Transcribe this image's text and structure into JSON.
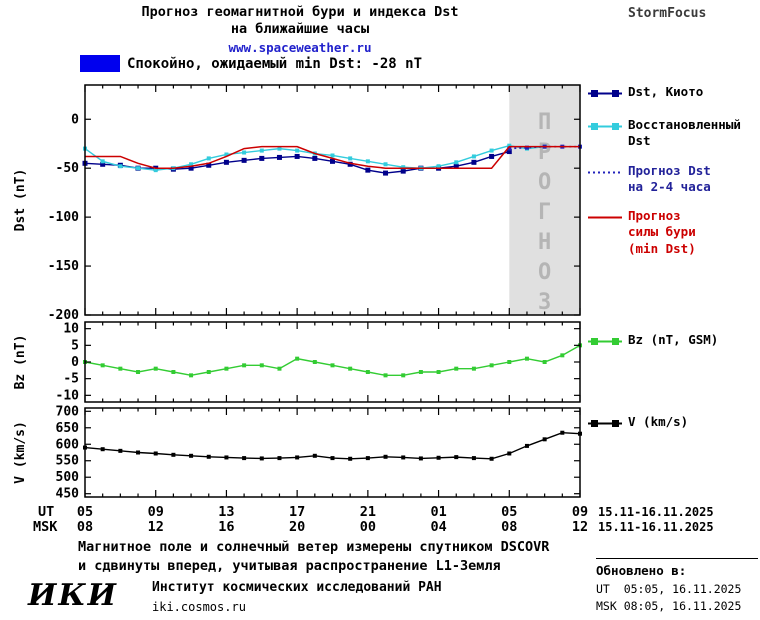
{
  "header": {
    "title_line1": "Прогноз геомагнитной бури и индекса Dst",
    "title_line2": "на ближайшие часы",
    "site_link": "www.spaceweather.ru",
    "brand": "StormFocus"
  },
  "status": {
    "label": "Спокойно, ожидаемый min Dst: -28 nT",
    "box_color": "#0000EE"
  },
  "forecast_overlay": {
    "label": "ПРОГНОЗ",
    "bg": "#E0E0E0",
    "text_color": "#B5B5B5"
  },
  "legend": {
    "items": [
      {
        "id": "dst-kyoto",
        "label": "Dst, Киото",
        "color": "#00008B",
        "style": "solid",
        "marker": "square",
        "text_color": "#000000"
      },
      {
        "id": "recon-dst",
        "label": "Восстановленный\nDst",
        "color": "#33CCDD",
        "style": "solid",
        "marker": "square",
        "text_color": "#000000"
      },
      {
        "id": "forecast-dst",
        "label": "Прогноз Dst\nна 2-4 часа",
        "color": "#2222BB",
        "style": "dotted",
        "marker": "none",
        "text_color": "#222299"
      },
      {
        "id": "storm-forecast",
        "label": "Прогноз\nсилы бури\n(min Dst)",
        "color": "#CC0000",
        "style": "solid",
        "marker": "none",
        "text_color": "#CC0000"
      },
      {
        "id": "bz",
        "label": "Bz (nT, GSM)",
        "color": "#33CC33",
        "style": "solid",
        "marker": "square",
        "text_color": "#000000"
      },
      {
        "id": "v",
        "label": "V (km/s)",
        "color": "#000000",
        "style": "solid",
        "marker": "square",
        "text_color": "#000000"
      }
    ]
  },
  "axis": {
    "ut_label": "UT",
    "msk_label": "MSK",
    "ut_ticks": [
      "05",
      "09",
      "13",
      "17",
      "21",
      "01",
      "05",
      "09"
    ],
    "msk_ticks": [
      "08",
      "12",
      "16",
      "20",
      "00",
      "04",
      "08",
      "12"
    ],
    "tick_hours": [
      5,
      9,
      13,
      17,
      21,
      25,
      29,
      33
    ],
    "date_range": "15.11-16.11.2025"
  },
  "footer": {
    "line1": "Магнитное поле и солнечный ветер измерены спутником DSCOVR",
    "line2": "и сдвинуты вперед, учитывая распространение L1-Земля"
  },
  "logo": {
    "text": "ИКИ",
    "institute": "Институт космических исследований РАН",
    "url": "iki.cosmos.ru"
  },
  "updated": {
    "title": "Обновлено в:",
    "ut": "UT  05:05, 16.11.2025",
    "msk": "MSK 08:05, 16.11.2025"
  },
  "chart_data": [
    {
      "type": "line",
      "ylabel": "Dst (nT)",
      "ylim": [
        -200,
        35
      ],
      "yticks": [
        0,
        -50,
        -100,
        -150,
        -200
      ],
      "xlim_hours_ut": [
        5,
        33
      ],
      "forecast_region_hours": [
        29,
        33
      ],
      "series": [
        {
          "id": "dst-kyoto",
          "name": "Dst, Киото",
          "color": "#00008B",
          "style": "solid",
          "marker": "square",
          "marker_size": 5,
          "width": 1.4,
          "x": [
            5,
            6,
            7,
            8,
            9,
            10,
            11,
            12,
            13,
            14,
            15,
            16,
            17,
            18,
            19,
            20,
            21,
            22,
            23,
            24,
            25,
            26,
            27,
            28,
            29
          ],
          "values": [
            -45,
            -46,
            -47,
            -50,
            -50,
            -51,
            -50,
            -47,
            -44,
            -42,
            -40,
            -39,
            -38,
            -40,
            -43,
            -46,
            -52,
            -55,
            -53,
            -50,
            -50,
            -48,
            -44,
            -38,
            -33
          ]
        },
        {
          "id": "recon-dst",
          "name": "Восстановленный Dst",
          "color": "#33CCDD",
          "style": "solid",
          "marker": "square",
          "marker_size": 4,
          "width": 1.4,
          "x": [
            5,
            6,
            7,
            8,
            9,
            10,
            11,
            12,
            13,
            14,
            15,
            16,
            17,
            18,
            19,
            20,
            21,
            22,
            23,
            24,
            25,
            26,
            27,
            28,
            29,
            30,
            31
          ],
          "values": [
            -30,
            -43,
            -48,
            -50,
            -52,
            -50,
            -46,
            -40,
            -36,
            -34,
            -32,
            -30,
            -32,
            -35,
            -37,
            -40,
            -43,
            -46,
            -49,
            -50,
            -48,
            -44,
            -38,
            -32,
            -27,
            -30,
            -28
          ]
        },
        {
          "id": "forecast-dst",
          "name": "Прогноз Dst на 2-4 часа",
          "color": "#2222BB",
          "style": "dotted",
          "marker": "square",
          "marker_size": 4,
          "width": 1.6,
          "x": [
            29,
            30,
            31,
            32,
            33
          ],
          "values": [
            -30,
            -29,
            -28,
            -28,
            -28
          ]
        },
        {
          "id": "storm-forecast",
          "name": "Прогноз силы бури (min Dst)",
          "color": "#CC0000",
          "style": "solid",
          "marker": "none",
          "width": 1.5,
          "x": [
            5,
            6,
            7,
            8,
            9,
            10,
            11,
            12,
            13,
            14,
            15,
            16,
            17,
            18,
            19,
            20,
            21,
            22,
            23,
            24,
            25,
            26,
            27,
            28,
            29,
            30,
            31,
            32,
            33
          ],
          "values": [
            -38,
            -38,
            -38,
            -45,
            -50,
            -50,
            -48,
            -45,
            -38,
            -30,
            -28,
            -28,
            -28,
            -35,
            -40,
            -45,
            -48,
            -50,
            -50,
            -50,
            -50,
            -50,
            -50,
            -50,
            -28,
            -28,
            -28,
            -28,
            -28
          ]
        }
      ]
    },
    {
      "type": "line",
      "ylabel": "Bz (nT)",
      "ylim": [
        -12,
        12
      ],
      "yticks": [
        10,
        5,
        0,
        -5,
        -10
      ],
      "xlim_hours_ut": [
        5,
        33
      ],
      "series": [
        {
          "id": "bz",
          "name": "Bz (nT, GSM)",
          "color": "#33CC33",
          "style": "solid",
          "marker": "square",
          "marker_size": 4,
          "width": 1.4,
          "x": [
            5,
            6,
            7,
            8,
            9,
            10,
            11,
            12,
            13,
            14,
            15,
            16,
            17,
            18,
            19,
            20,
            21,
            22,
            23,
            24,
            25,
            26,
            27,
            28,
            29,
            30,
            31,
            32,
            33
          ],
          "values": [
            0,
            -1,
            -2,
            -3,
            -2,
            -3,
            -4,
            -3,
            -2,
            -1,
            -1,
            -2,
            1,
            0,
            -1,
            -2,
            -3,
            -4,
            -4,
            -3,
            -3,
            -2,
            -2,
            -1,
            0,
            1,
            0,
            2,
            5
          ]
        }
      ]
    },
    {
      "type": "line",
      "ylabel": "V (km/s)",
      "ylim": [
        440,
        710
      ],
      "yticks": [
        700,
        650,
        600,
        550,
        500,
        450
      ],
      "xlim_hours_ut": [
        5,
        33
      ],
      "series": [
        {
          "id": "v",
          "name": "V (km/s)",
          "color": "#000000",
          "style": "solid",
          "marker": "square",
          "marker_size": 4,
          "width": 1.4,
          "x": [
            5,
            6,
            7,
            8,
            9,
            10,
            11,
            12,
            13,
            14,
            15,
            16,
            17,
            18,
            19,
            20,
            21,
            22,
            23,
            24,
            25,
            26,
            27,
            28,
            29,
            30,
            31,
            32,
            33
          ],
          "values": [
            590,
            585,
            580,
            575,
            572,
            568,
            565,
            562,
            560,
            558,
            557,
            558,
            560,
            565,
            558,
            556,
            558,
            562,
            560,
            557,
            559,
            561,
            558,
            556,
            572,
            595,
            615,
            635,
            632
          ]
        }
      ]
    }
  ]
}
